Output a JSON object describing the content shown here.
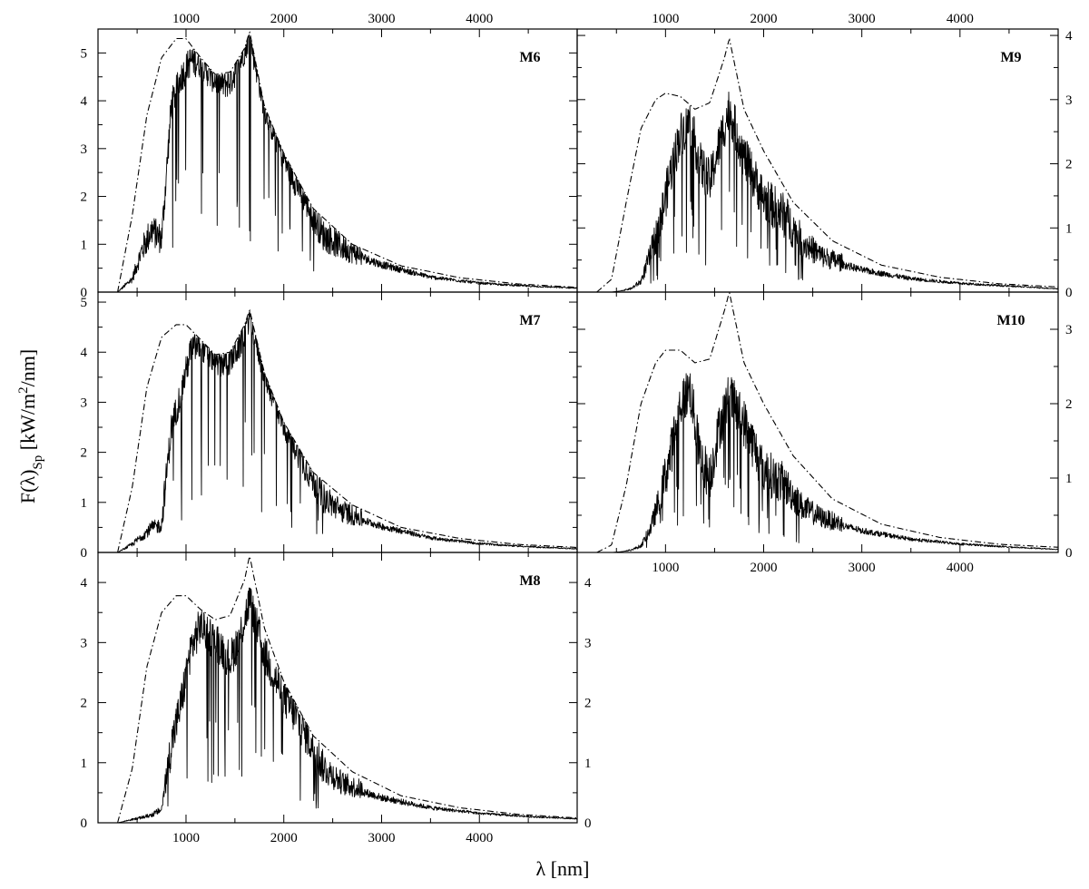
{
  "figure": {
    "x_axis_label": "λ [nm]",
    "y_axis_label_parts": [
      "F(λ)",
      "Sp",
      " [kW/m",
      "2",
      "/nm]"
    ]
  },
  "chart_data": [
    {
      "type": "line",
      "label": "M6",
      "xlim": [
        100,
        5000
      ],
      "ylim": [
        0,
        5.5
      ],
      "x_ticks": [
        1000,
        2000,
        3000,
        4000
      ],
      "y_ticks": [
        0,
        1,
        2,
        3,
        4,
        5
      ],
      "grid": false,
      "envelope": {
        "x": [
          300,
          450,
          600,
          750,
          900,
          1000,
          1150,
          1300,
          1450,
          1600,
          1650,
          1800,
          2000,
          2300,
          2700,
          3200,
          3800,
          4400,
          5000
        ],
        "y": [
          0,
          1.6,
          3.7,
          4.9,
          5.3,
          5.3,
          4.9,
          4.55,
          4.6,
          5.1,
          5.45,
          3.9,
          2.9,
          1.75,
          1.0,
          0.55,
          0.3,
          0.17,
          0.1
        ]
      },
      "spectrum": {
        "x": [
          300,
          450,
          550,
          650,
          750,
          850,
          950,
          1050,
          1150,
          1250,
          1350,
          1450,
          1550,
          1650,
          1800,
          2000,
          2200,
          2400,
          2600,
          3000,
          3500,
          4000,
          4500,
          5000
        ],
        "y": [
          0,
          0.25,
          0.8,
          1.2,
          1.0,
          3.8,
          4.4,
          4.75,
          4.7,
          4.45,
          4.25,
          4.3,
          4.7,
          5.3,
          3.8,
          2.7,
          1.9,
          1.1,
          0.85,
          0.55,
          0.3,
          0.18,
          0.12,
          0.08
        ],
        "noise": 0.3
      }
    },
    {
      "type": "line",
      "label": "M7",
      "xlim": [
        100,
        5000
      ],
      "ylim": [
        0,
        5.2
      ],
      "x_ticks": [
        1000,
        2000,
        3000,
        4000
      ],
      "y_ticks": [
        0,
        1,
        2,
        3,
        4,
        5
      ],
      "grid": false,
      "envelope": {
        "x": [
          300,
          450,
          600,
          750,
          900,
          1000,
          1150,
          1300,
          1450,
          1600,
          1650,
          1800,
          2000,
          2300,
          2700,
          3200,
          3800,
          4400,
          5000
        ],
        "y": [
          0,
          1.3,
          3.3,
          4.3,
          4.55,
          4.55,
          4.25,
          3.95,
          4.0,
          4.55,
          4.85,
          3.6,
          2.6,
          1.6,
          0.95,
          0.5,
          0.28,
          0.16,
          0.1
        ]
      },
      "spectrum": {
        "x": [
          300,
          450,
          550,
          650,
          750,
          850,
          950,
          1050,
          1150,
          1250,
          1350,
          1450,
          1550,
          1650,
          1800,
          2000,
          2200,
          2400,
          2600,
          3000,
          3500,
          4000,
          4500,
          5000
        ],
        "y": [
          0,
          0.15,
          0.3,
          0.45,
          0.5,
          2.4,
          3.1,
          3.95,
          4.05,
          3.85,
          3.7,
          3.75,
          4.05,
          4.65,
          3.5,
          2.5,
          1.7,
          1.0,
          0.75,
          0.5,
          0.28,
          0.17,
          0.11,
          0.07
        ],
        "noise": 0.28
      }
    },
    {
      "type": "line",
      "label": "M8",
      "xlim": [
        100,
        5000
      ],
      "ylim": [
        0,
        4.5
      ],
      "x_ticks": [
        1000,
        2000,
        3000,
        4000
      ],
      "y_ticks": [
        0,
        1,
        2,
        3,
        4
      ],
      "grid": false,
      "envelope": {
        "x": [
          300,
          450,
          600,
          750,
          900,
          1000,
          1150,
          1300,
          1450,
          1600,
          1650,
          1800,
          2000,
          2300,
          2700,
          3200,
          3800,
          4400,
          5000
        ],
        "y": [
          0,
          0.9,
          2.6,
          3.5,
          3.78,
          3.78,
          3.55,
          3.38,
          3.45,
          4.05,
          4.45,
          3.25,
          2.35,
          1.45,
          0.85,
          0.45,
          0.25,
          0.14,
          0.08
        ]
      },
      "spectrum": {
        "x": [
          300,
          450,
          550,
          650,
          750,
          850,
          950,
          1050,
          1150,
          1250,
          1350,
          1450,
          1550,
          1650,
          1800,
          2000,
          2200,
          2400,
          2600,
          3000,
          3500,
          4000,
          4500,
          5000
        ],
        "y": [
          0,
          0.05,
          0.08,
          0.12,
          0.2,
          1.2,
          1.9,
          2.8,
          3.2,
          3.0,
          2.85,
          2.6,
          3.0,
          3.6,
          2.7,
          2.0,
          1.45,
          0.85,
          0.6,
          0.4,
          0.24,
          0.15,
          0.1,
          0.06
        ],
        "noise": 0.3
      }
    },
    {
      "type": "line",
      "label": "M9",
      "xlim": [
        100,
        5000
      ],
      "ylim": [
        0,
        4.1
      ],
      "x_ticks": [
        1000,
        2000,
        3000,
        4000
      ],
      "y_ticks": [
        0,
        1,
        2,
        3,
        4
      ],
      "grid": false,
      "envelope": {
        "x": [
          300,
          450,
          600,
          750,
          900,
          1000,
          1150,
          1300,
          1450,
          1600,
          1650,
          1800,
          2000,
          2300,
          2700,
          3200,
          3800,
          4400,
          5000
        ],
        "y": [
          0,
          0.2,
          1.4,
          2.55,
          3.0,
          3.1,
          3.05,
          2.85,
          2.95,
          3.65,
          3.95,
          2.85,
          2.2,
          1.4,
          0.8,
          0.42,
          0.23,
          0.13,
          0.08
        ]
      },
      "spectrum": {
        "x": [
          300,
          450,
          550,
          650,
          750,
          850,
          950,
          1050,
          1150,
          1250,
          1350,
          1450,
          1550,
          1650,
          1800,
          2000,
          2200,
          2400,
          2600,
          3000,
          3500,
          4000,
          4500,
          5000
        ],
        "y": [
          0,
          0,
          0.02,
          0.05,
          0.15,
          0.55,
          1.0,
          1.75,
          2.35,
          2.55,
          1.9,
          1.6,
          2.2,
          2.75,
          2.0,
          1.35,
          1.1,
          0.7,
          0.5,
          0.33,
          0.2,
          0.13,
          0.09,
          0.05
        ],
        "noise": 0.32
      }
    },
    {
      "type": "line",
      "label": "M10",
      "xlim": [
        100,
        5000
      ],
      "ylim": [
        0,
        3.5
      ],
      "x_ticks": [
        1000,
        2000,
        3000,
        4000
      ],
      "y_ticks": [
        0,
        1,
        2,
        3
      ],
      "grid": false,
      "envelope": {
        "x": [
          300,
          450,
          600,
          750,
          900,
          1000,
          1150,
          1300,
          1450,
          1600,
          1650,
          1800,
          2000,
          2300,
          2700,
          3200,
          3800,
          4400,
          5000
        ],
        "y": [
          0,
          0.1,
          0.9,
          2.0,
          2.55,
          2.72,
          2.72,
          2.55,
          2.6,
          3.25,
          3.5,
          2.55,
          2.0,
          1.3,
          0.72,
          0.38,
          0.2,
          0.11,
          0.07
        ]
      },
      "spectrum": {
        "x": [
          300,
          450,
          550,
          650,
          750,
          850,
          950,
          1050,
          1150,
          1250,
          1350,
          1450,
          1550,
          1650,
          1800,
          2000,
          2200,
          2400,
          2600,
          3000,
          3500,
          4000,
          4500,
          5000
        ],
        "y": [
          0,
          0,
          0.01,
          0.03,
          0.08,
          0.3,
          0.7,
          1.2,
          1.9,
          2.1,
          1.2,
          0.9,
          1.6,
          2.0,
          1.65,
          1.0,
          0.85,
          0.55,
          0.42,
          0.28,
          0.17,
          0.11,
          0.07,
          0.04
        ],
        "noise": 0.3
      }
    }
  ]
}
